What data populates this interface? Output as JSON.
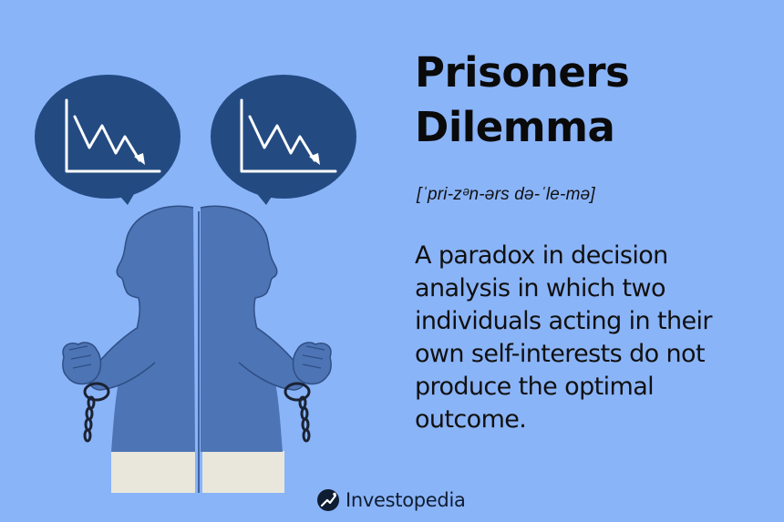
{
  "title": "Prisoners Dilemma",
  "pronunciation": "[ˈpri-zᵊn-ərs də-ˈle-mə]",
  "definition": "A paradox in decision analysis in which two individuals acting in their own self-interests do not produce the optimal outcome.",
  "brand": {
    "name": "Investopedia",
    "logo_icon": "investopedia-logo-icon"
  },
  "colors": {
    "background": "#8ab4f8",
    "figure": "#4d74b4",
    "speech_bubble": "#234b82",
    "chart_line": "#ffffff",
    "pants": "#e9e6dc",
    "text": "#101010"
  },
  "icons": [
    "speech-bubble-icon",
    "declining-chart-icon",
    "handcuffs-icon"
  ]
}
